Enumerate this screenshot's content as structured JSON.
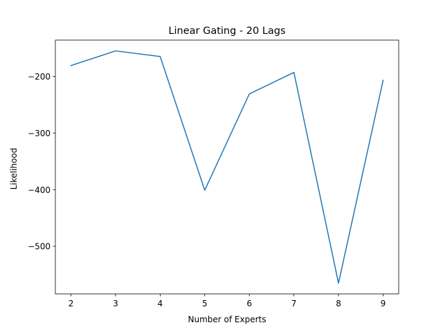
{
  "chart_data": {
    "type": "line",
    "title": "Linear Gating - 20 Lags",
    "xlabel": "Number of Experts",
    "ylabel": "Likelihood",
    "x": [
      2,
      3,
      4,
      5,
      6,
      7,
      8,
      9
    ],
    "series": [
      {
        "values": [
          -181,
          -155,
          -165,
          -401,
          -231,
          -193,
          -565,
          -207
        ],
        "color": "#1f77b4"
      }
    ],
    "xlim": [
      1.65,
      9.35
    ],
    "ylim": [
      -584,
      -136
    ],
    "xticks": [
      2,
      3,
      4,
      5,
      6,
      7,
      8,
      9
    ],
    "xtick_labels": [
      "2",
      "3",
      "4",
      "5",
      "6",
      "7",
      "8",
      "9"
    ],
    "yticks": [
      -500,
      -400,
      -300,
      -200
    ],
    "ytick_labels": [
      "−500",
      "−400",
      "−300",
      "−200"
    ],
    "grid": false,
    "legend": "none"
  }
}
